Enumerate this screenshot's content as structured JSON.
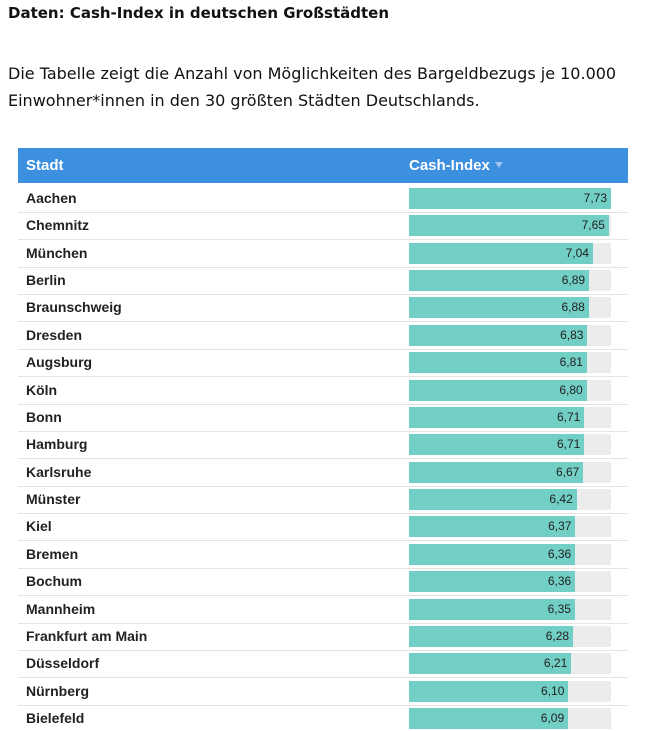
{
  "header": {
    "title": "Daten: Cash-Index in deutschen Großstädten",
    "intro": "Die Tabelle zeigt die Anzahl von Möglichkeiten des Bargeldbezugs je 10.000 Einwohner*innen in den 30 größten Städten Deutschlands."
  },
  "table": {
    "columns": [
      "Stadt",
      "Cash-Index"
    ],
    "rows": [
      {
        "city": "Aachen",
        "value": 7.73,
        "value_label": "7,73"
      },
      {
        "city": "Chemnitz",
        "value": 7.65,
        "value_label": "7,65"
      },
      {
        "city": "München",
        "value": 7.04,
        "value_label": "7,04"
      },
      {
        "city": "Berlin",
        "value": 6.89,
        "value_label": "6,89"
      },
      {
        "city": "Braunschweig",
        "value": 6.88,
        "value_label": "6,88"
      },
      {
        "city": "Dresden",
        "value": 6.83,
        "value_label": "6,83"
      },
      {
        "city": "Augsburg",
        "value": 6.81,
        "value_label": "6,81"
      },
      {
        "city": "Köln",
        "value": 6.8,
        "value_label": "6,80"
      },
      {
        "city": "Bonn",
        "value": 6.71,
        "value_label": "6,71"
      },
      {
        "city": "Hamburg",
        "value": 6.71,
        "value_label": "6,71"
      },
      {
        "city": "Karlsruhe",
        "value": 6.67,
        "value_label": "6,67"
      },
      {
        "city": "Münster",
        "value": 6.42,
        "value_label": "6,42"
      },
      {
        "city": "Kiel",
        "value": 6.37,
        "value_label": "6,37"
      },
      {
        "city": "Bremen",
        "value": 6.36,
        "value_label": "6,36"
      },
      {
        "city": "Bochum",
        "value": 6.36,
        "value_label": "6,36"
      },
      {
        "city": "Mannheim",
        "value": 6.35,
        "value_label": "6,35"
      },
      {
        "city": "Frankfurt am Main",
        "value": 6.28,
        "value_label": "6,28"
      },
      {
        "city": "Düsseldorf",
        "value": 6.21,
        "value_label": "6,21"
      },
      {
        "city": "Nürnberg",
        "value": 6.1,
        "value_label": "6,10"
      },
      {
        "city": "Bielefeld",
        "value": 6.09,
        "value_label": "6,09"
      }
    ]
  }
}
